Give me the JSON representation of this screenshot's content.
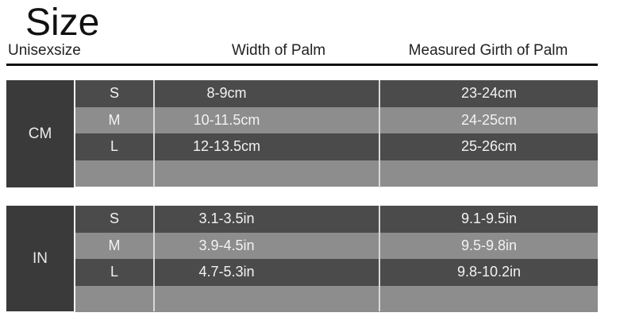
{
  "title": "Size",
  "subtitle": "Unisexsize",
  "headers": {
    "width": "Width of Palm",
    "girth": "Measured Girth of Palm"
  },
  "tables": [
    {
      "unit": "CM",
      "rows": [
        {
          "size": "S",
          "width": "8-9cm",
          "girth": "23-24cm"
        },
        {
          "size": "M",
          "width": "10-11.5cm",
          "girth": "24-25cm"
        },
        {
          "size": "L",
          "width": "12-13.5cm",
          "girth": "25-26cm"
        },
        {
          "size": "",
          "width": "",
          "girth": ""
        }
      ]
    },
    {
      "unit": "IN",
      "rows": [
        {
          "size": "S",
          "width": "3.1-3.5in",
          "girth": "9.1-9.5in"
        },
        {
          "size": "M",
          "width": "3.9-4.5in",
          "girth": "9.5-9.8in"
        },
        {
          "size": "L",
          "width": "4.7-5.3in",
          "girth": "9.8-10.2in"
        },
        {
          "size": "",
          "width": "",
          "girth": ""
        }
      ]
    }
  ]
}
